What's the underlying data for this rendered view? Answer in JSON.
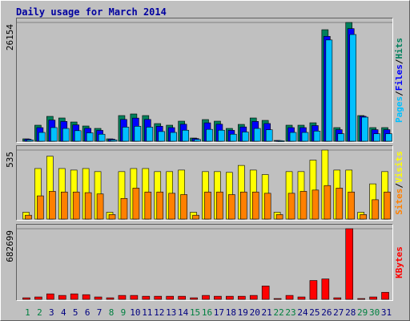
{
  "title": "Daily usage for March 2014",
  "legend_separator": "/",
  "categories": [
    "1",
    "2",
    "3",
    "4",
    "5",
    "6",
    "7",
    "8",
    "9",
    "10",
    "11",
    "12",
    "13",
    "14",
    "15",
    "16",
    "17",
    "18",
    "19",
    "20",
    "21",
    "22",
    "23",
    "24",
    "25",
    "26",
    "27",
    "28",
    "29",
    "30",
    "31"
  ],
  "label_colors": [
    "#008040",
    "#008040",
    "#000080",
    "#000080",
    "#000080",
    "#000080",
    "#000080",
    "#008040",
    "#008040",
    "#000080",
    "#000080",
    "#000080",
    "#000080",
    "#000080",
    "#008040",
    "#008040",
    "#000080",
    "#000080",
    "#000080",
    "#000080",
    "#000080",
    "#008040",
    "#008040",
    "#000080",
    "#000080",
    "#000080",
    "#000080",
    "#000080",
    "#008040",
    "#008040",
    "#000080"
  ],
  "chart_data": [
    {
      "type": "bar",
      "ylim": [
        0,
        26154
      ],
      "yticks": [
        26154
      ],
      "grid": true,
      "series": [
        {
          "name": "Hits",
          "color": "#00805c",
          "values": [
            530,
            3534,
            5478,
            5124,
            4241,
            3357,
            2827,
            530,
            5654,
            6008,
            5654,
            3887,
            3534,
            4418,
            707,
            4771,
            4418,
            2827,
            3711,
            5124,
            4594,
            177,
            3534,
            3534,
            4064,
            24561,
            3004,
            26154,
            5654,
            3004,
            3004
          ]
        },
        {
          "name": "Files",
          "color": "#0000ff",
          "values": [
            450,
            3000,
            4660,
            4360,
            3600,
            2850,
            2400,
            450,
            4800,
            5100,
            4800,
            3300,
            3000,
            3750,
            600,
            4050,
            3750,
            2400,
            3150,
            4360,
            3900,
            150,
            3000,
            3000,
            3450,
            23100,
            2550,
            24800,
            5500,
            2550,
            2550
          ]
        },
        {
          "name": "Pages",
          "color": "#00c0ff",
          "values": [
            290,
            1940,
            3010,
            2820,
            2330,
            1850,
            1550,
            290,
            3110,
            3300,
            3110,
            2140,
            1940,
            2430,
            390,
            2620,
            2430,
            1550,
            2040,
            2820,
            2530,
            100,
            1940,
            1940,
            2240,
            22300,
            1650,
            23500,
            5300,
            1650,
            1650
          ]
        }
      ]
    },
    {
      "type": "bar",
      "ylim": [
        0,
        535
      ],
      "yticks": [
        535
      ],
      "grid": true,
      "series": [
        {
          "name": "Visits",
          "color": "#ffff00",
          "values": [
            53,
            392,
            487,
            392,
            380,
            392,
            368,
            53,
            368,
            392,
            392,
            368,
            368,
            380,
            53,
            368,
            368,
            362,
            416,
            380,
            345,
            53,
            368,
            368,
            457,
            535,
            380,
            380,
            53,
            273,
            368
          ]
        },
        {
          "name": "Sites",
          "color": "#ff8000",
          "values": [
            30,
            180,
            215,
            210,
            210,
            205,
            195,
            35,
            160,
            240,
            210,
            210,
            200,
            190,
            30,
            210,
            210,
            190,
            210,
            210,
            200,
            35,
            200,
            215,
            225,
            260,
            240,
            210,
            35,
            150,
            210
          ]
        }
      ]
    },
    {
      "type": "bar",
      "ylim": [
        0,
        682699
      ],
      "yticks": [
        682699
      ],
      "grid": true,
      "series": [
        {
          "name": "KBytes",
          "color": "#ff0000",
          "values": [
            15000,
            23000,
            53000,
            38000,
            53000,
            45000,
            23000,
            15000,
            38000,
            38000,
            30000,
            30000,
            30000,
            30000,
            15000,
            38000,
            30000,
            30000,
            30000,
            38000,
            129000,
            7600,
            38000,
            23000,
            182000,
            197000,
            15000,
            682699,
            7600,
            23000,
            68000
          ]
        }
      ]
    }
  ]
}
